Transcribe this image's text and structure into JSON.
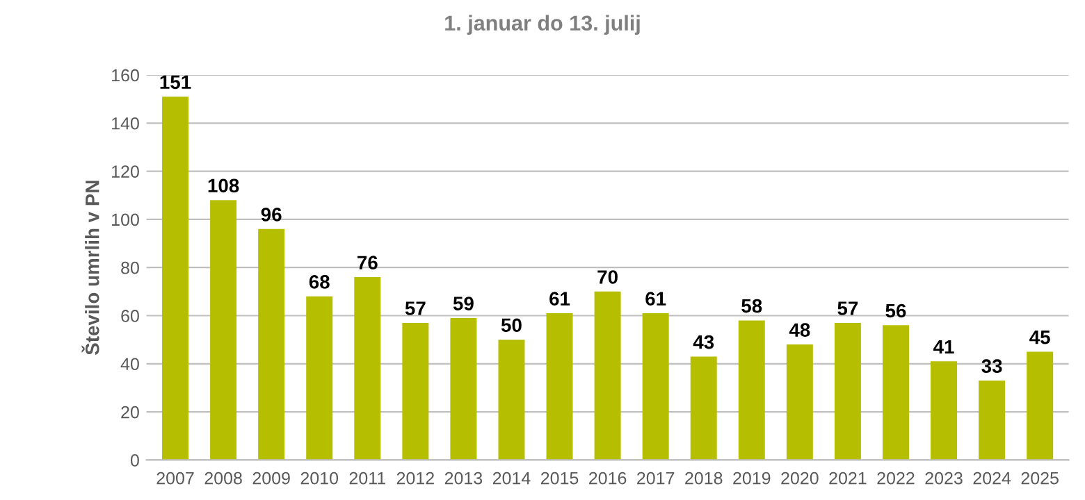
{
  "chart_data": {
    "type": "bar",
    "title": "1. januar do 13. julij",
    "ylabel": "Število umrlih v PN",
    "categories": [
      "2007",
      "2008",
      "2009",
      "2010",
      "2011",
      "2012",
      "2013",
      "2014",
      "2015",
      "2016",
      "2017",
      "2018",
      "2019",
      "2020",
      "2021",
      "2022",
      "2023",
      "2024",
      "2025"
    ],
    "values": [
      151,
      108,
      96,
      68,
      76,
      57,
      59,
      50,
      61,
      70,
      61,
      43,
      58,
      48,
      57,
      56,
      41,
      33,
      45
    ],
    "color": "#b5bf00",
    "ylim": [
      0,
      160
    ],
    "yticks": [
      0,
      20,
      40,
      60,
      80,
      100,
      120,
      140,
      160
    ],
    "grid": "y",
    "data_labels": true
  }
}
